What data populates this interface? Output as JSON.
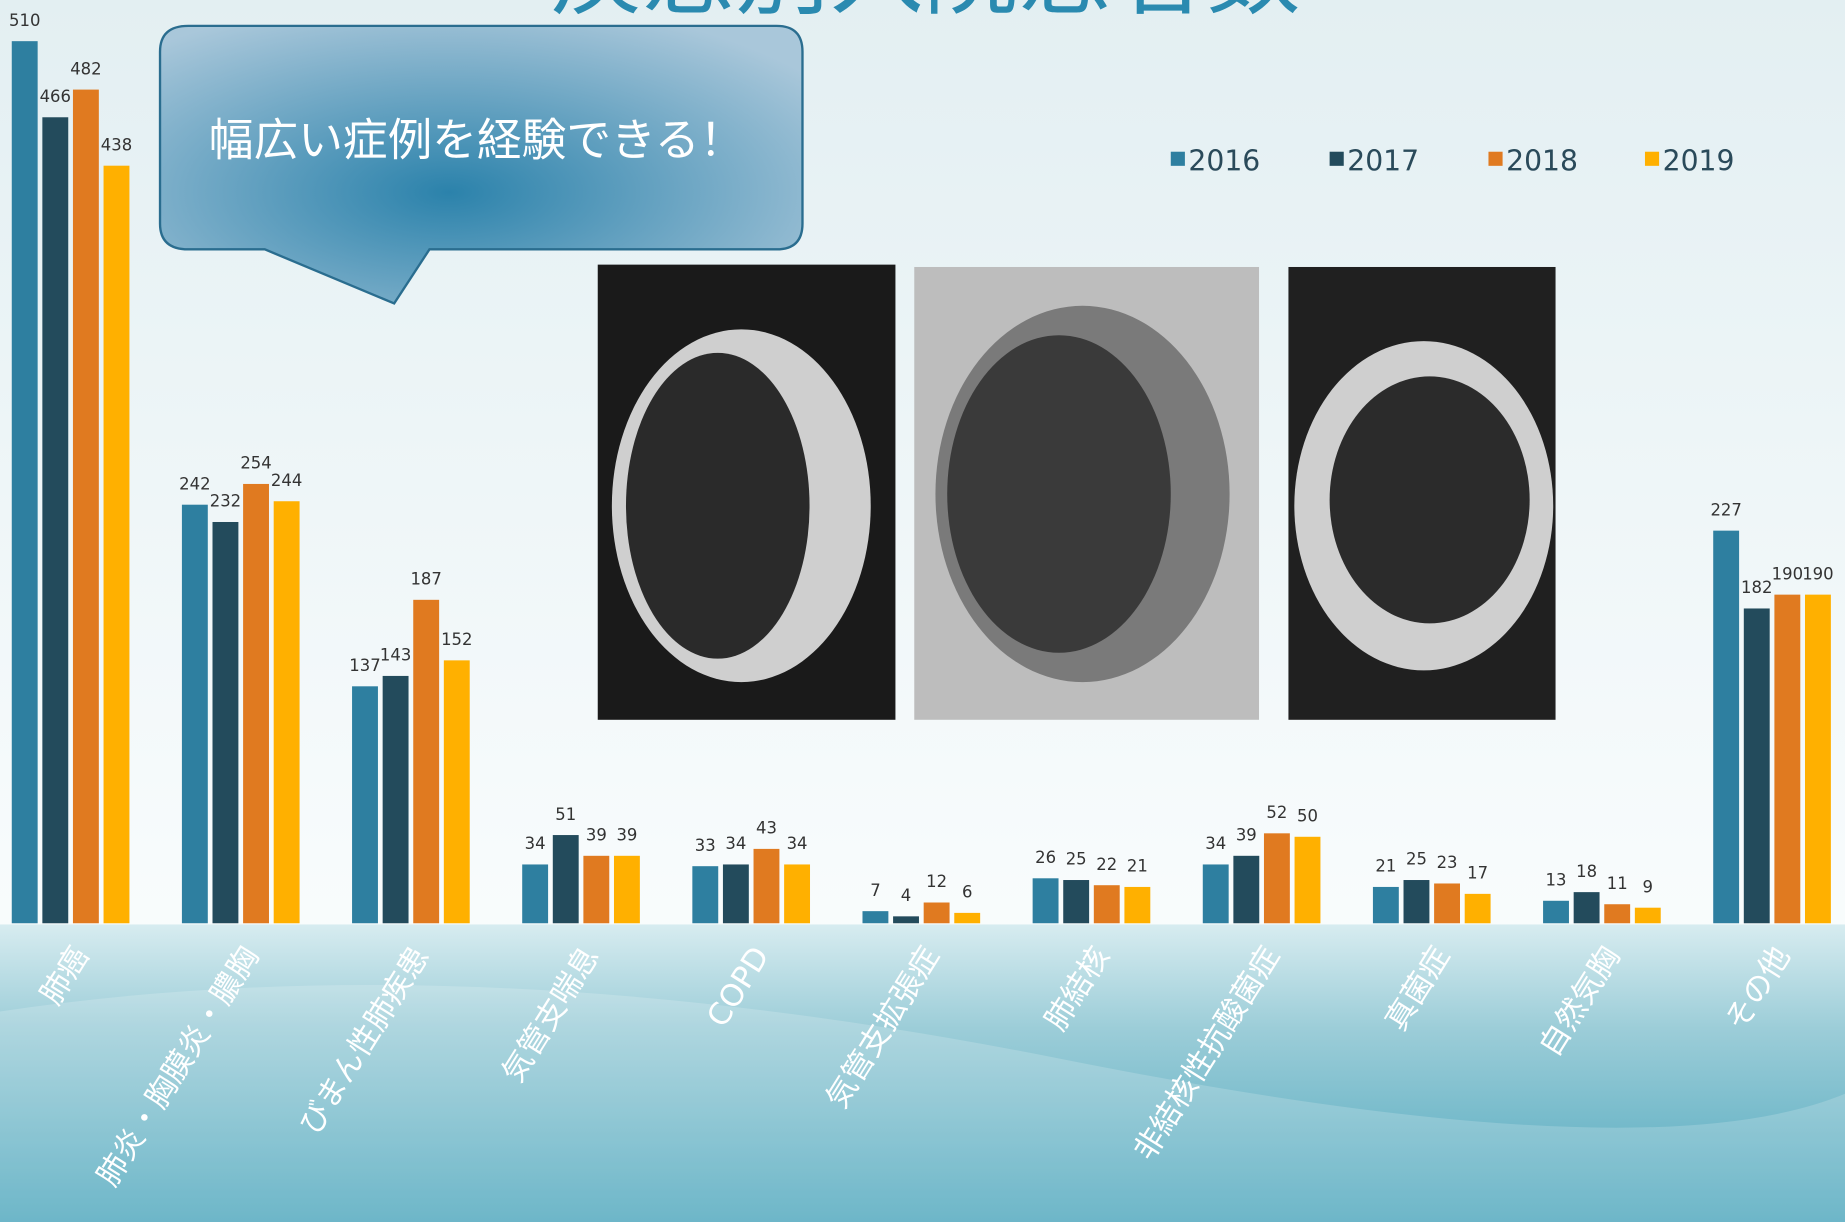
{
  "chart_data": {
    "type": "bar",
    "title": "疾患別入院患者数",
    "callout": "幅広い症例を経験できる！",
    "categories": [
      "肺癌",
      "肺炎・胸膜炎・膿胸",
      "びまん性肺疾患",
      "気管支喘息",
      "COPD",
      "気管支拡張症",
      "肺結核",
      "非結核性抗酸菌症",
      "真菌症",
      "自然気胸",
      "その他"
    ],
    "series": [
      {
        "name": "2016",
        "color": "#2e7fa0",
        "values": [
          510,
          242,
          137,
          34,
          33,
          7,
          26,
          34,
          21,
          13,
          227
        ]
      },
      {
        "name": "2017",
        "color": "#234b5c",
        "values": [
          466,
          232,
          143,
          51,
          34,
          4,
          25,
          39,
          25,
          18,
          182
        ]
      },
      {
        "name": "2018",
        "color": "#e07a20",
        "values": [
          482,
          254,
          187,
          39,
          43,
          12,
          22,
          52,
          23,
          11,
          190
        ]
      },
      {
        "name": "2019",
        "color": "#ffb000",
        "values": [
          438,
          244,
          152,
          39,
          34,
          6,
          21,
          50,
          17,
          9,
          190
        ]
      }
    ],
    "legend": "top-right"
  }
}
